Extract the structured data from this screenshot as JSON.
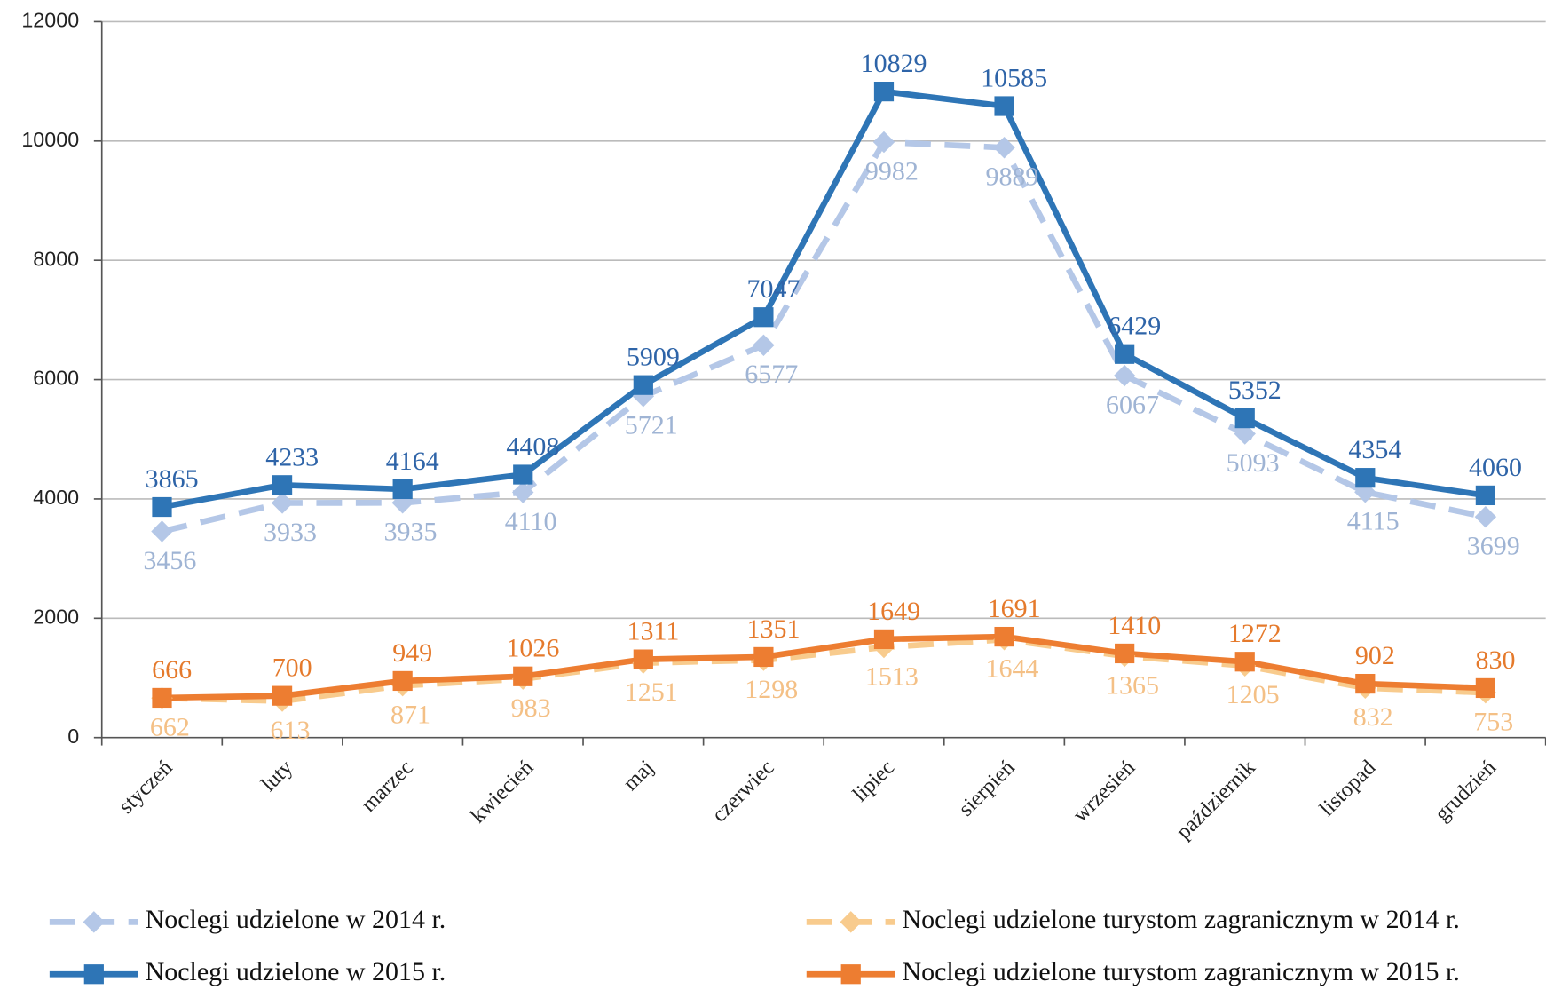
{
  "chart_data": {
    "type": "line",
    "categories": [
      "styczeń",
      "luty",
      "marzec",
      "kwiecień",
      "maj",
      "czerwiec",
      "lipiec",
      "sierpień",
      "wrzesień",
      "październik",
      "listopad",
      "grudzień"
    ],
    "series": [
      {
        "name": "Noclegi udzielone w 2014 r.",
        "color": "#b4c7e7",
        "dashed": true,
        "marker": "diamond",
        "values": [
          3456,
          3933,
          3935,
          4110,
          5721,
          6577,
          9982,
          9889,
          6067,
          5093,
          4115,
          3699
        ]
      },
      {
        "name": "Noclegi udzielone w 2015 r.",
        "color": "#2e75b6",
        "dashed": false,
        "marker": "square",
        "values": [
          3865,
          4233,
          4164,
          4408,
          5909,
          7047,
          10829,
          10585,
          6429,
          5352,
          4354,
          4060
        ]
      },
      {
        "name": "Noclegi udzielone turystom zagranicznym w 2014 r.",
        "color": "#f8cb8d",
        "dashed": true,
        "marker": "diamond",
        "values": [
          662,
          613,
          871,
          983,
          1251,
          1298,
          1513,
          1644,
          1365,
          1205,
          832,
          753
        ]
      },
      {
        "name": "Noclegi udzielone turystom zagranicznym w 2015 r.",
        "color": "#ed7d31",
        "dashed": false,
        "marker": "square",
        "values": [
          666,
          700,
          949,
          1026,
          1311,
          1351,
          1649,
          1691,
          1410,
          1272,
          902,
          830
        ]
      }
    ],
    "ylim": [
      0,
      12000
    ],
    "yticks": [
      0,
      2000,
      4000,
      6000,
      8000,
      10000,
      12000
    ],
    "grid": true,
    "legend": "bottom"
  }
}
